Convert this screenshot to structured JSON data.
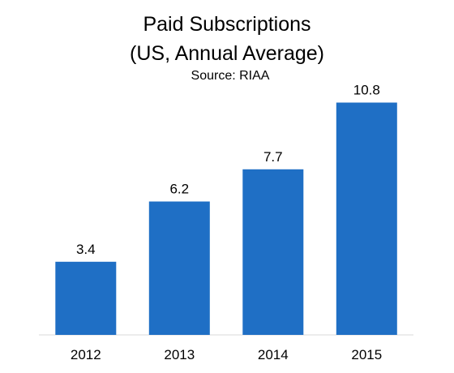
{
  "chart_data": {
    "type": "bar",
    "title": "Paid Subscriptions",
    "subtitle": "(US, Annual Average)",
    "source": "Source: RIAA",
    "categories": [
      "2012",
      "2013",
      "2014",
      "2015"
    ],
    "values": [
      3.4,
      6.2,
      7.7,
      10.8
    ],
    "data_labels": [
      "3.4",
      "6.2",
      "7.7",
      "10.8"
    ],
    "xlabel": "",
    "ylabel": "",
    "ylim": [
      0,
      11.8
    ],
    "grid": false,
    "legend": "none",
    "bar_color": "#1f6fc5",
    "axis_color": "#d9d9d9"
  }
}
